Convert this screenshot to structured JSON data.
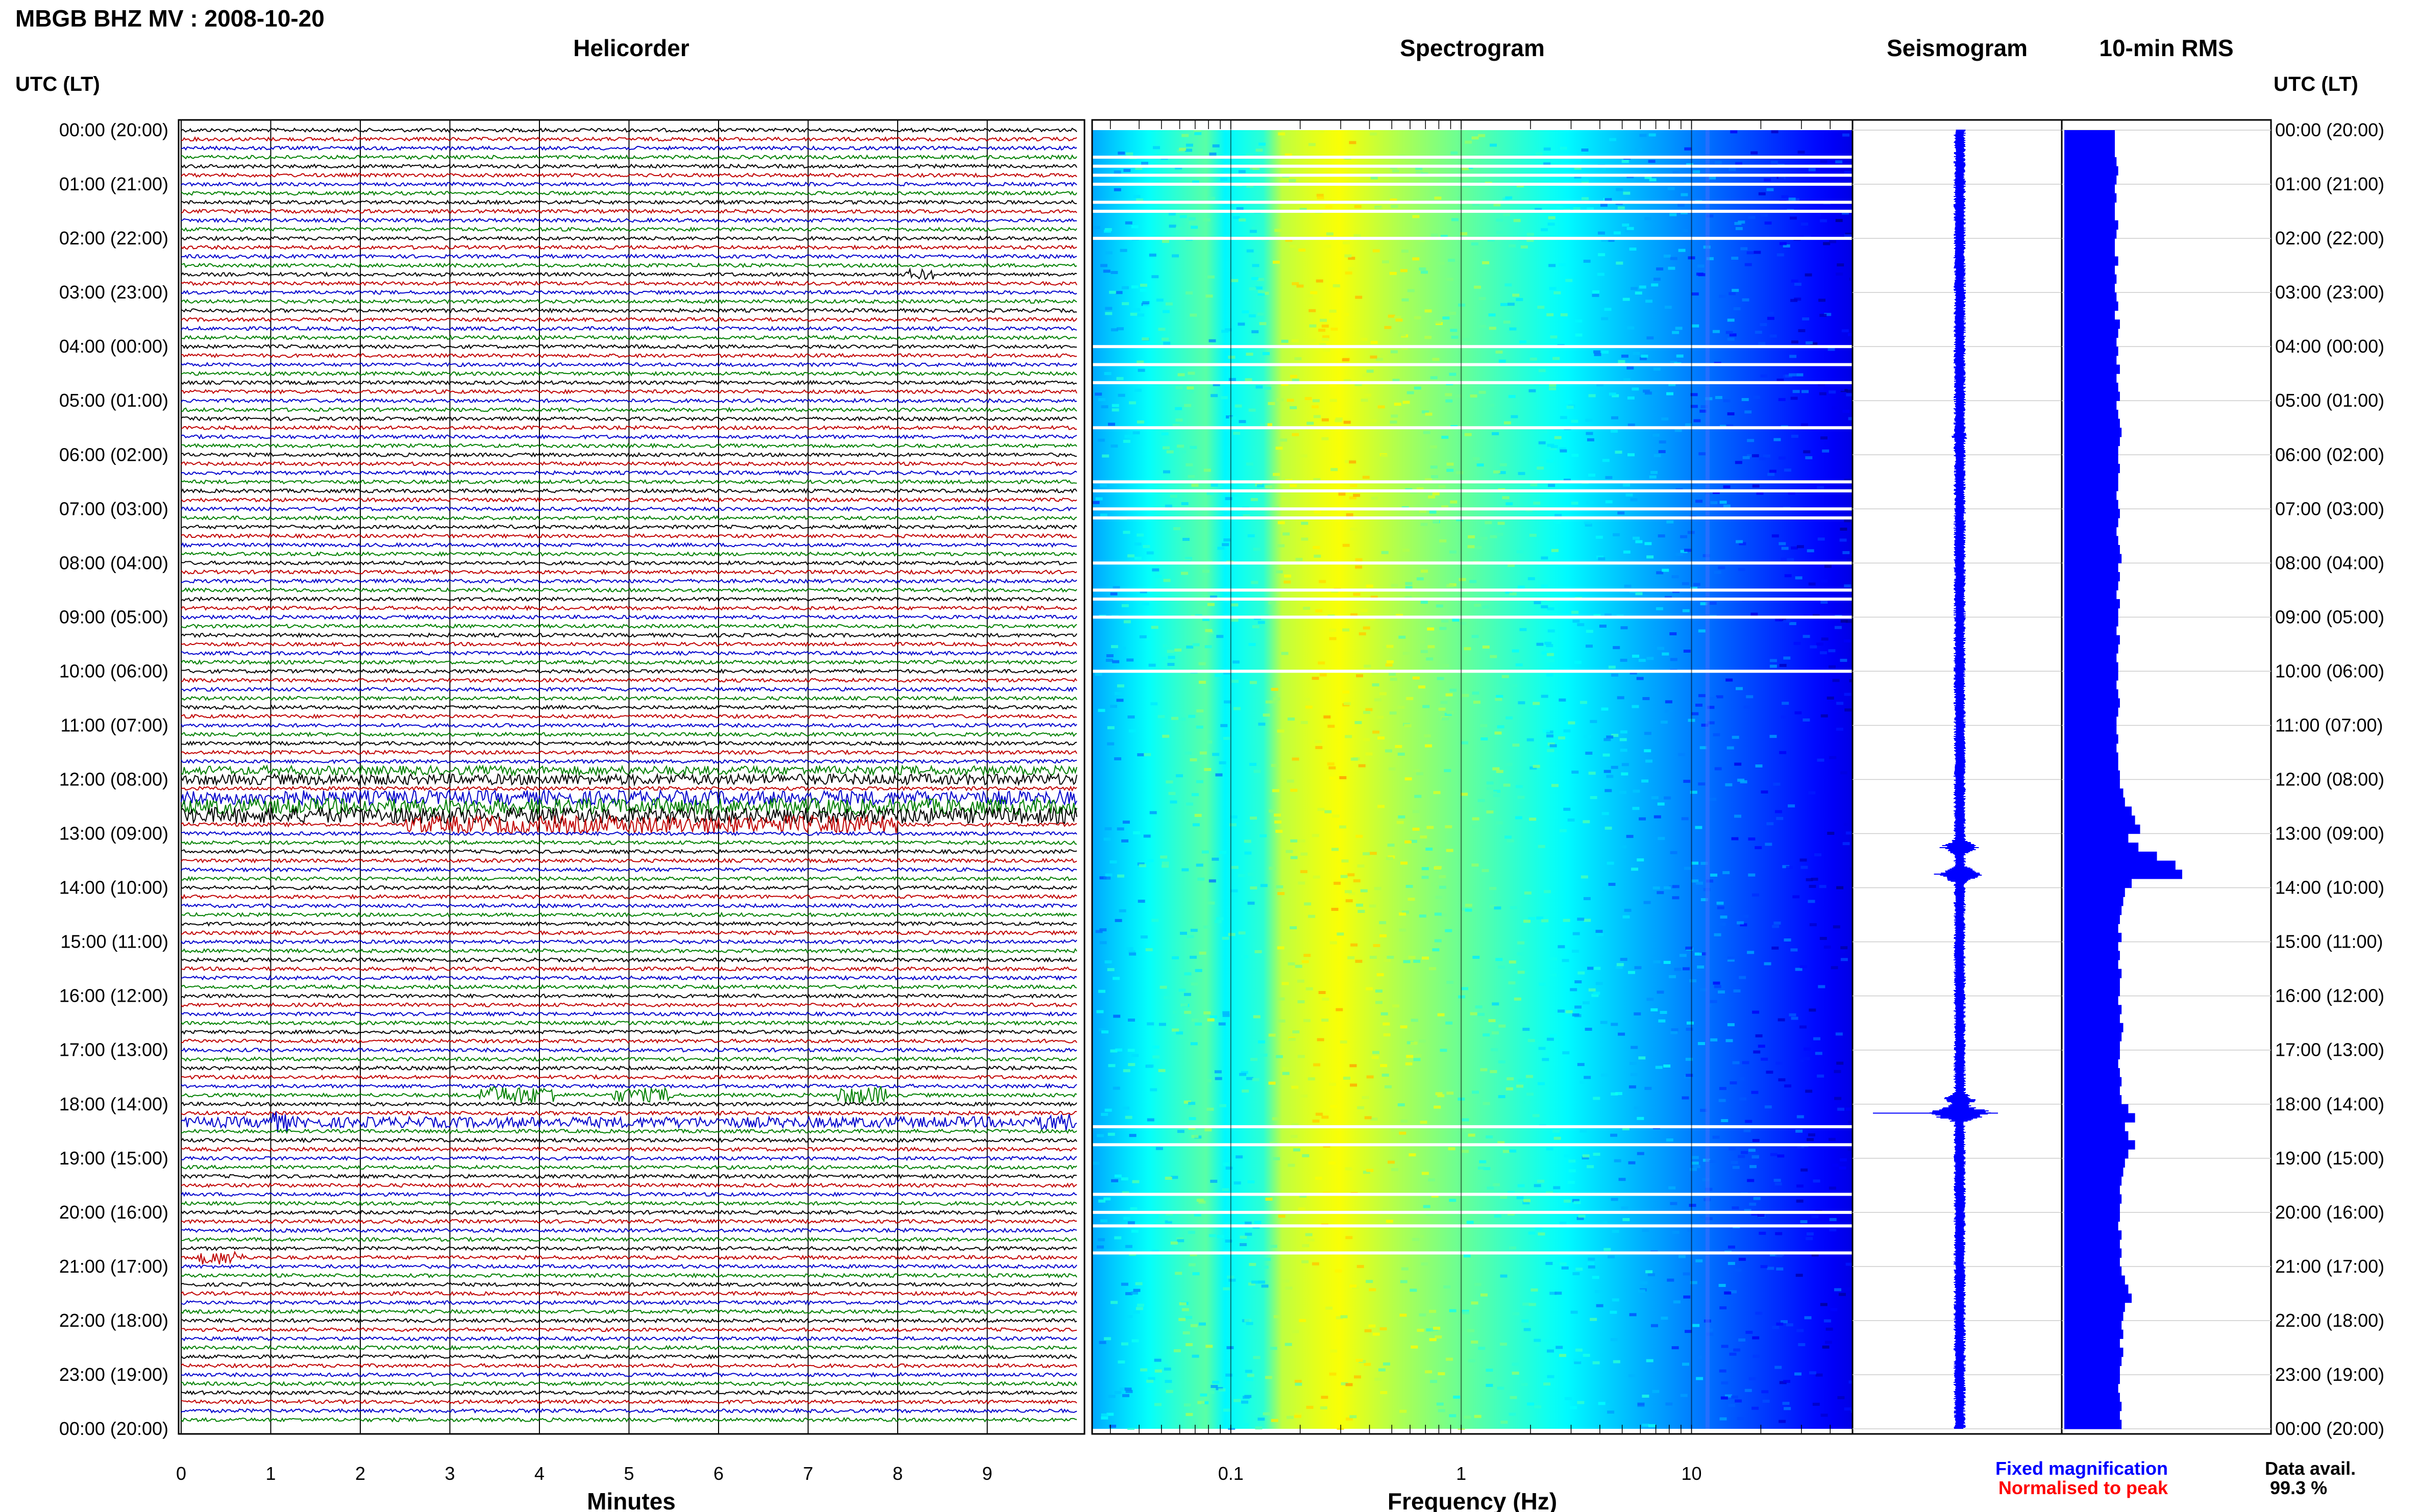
{
  "header": {
    "title": "MBGB BHZ MV : 2008-10-20",
    "utc_label": "UTC (LT)"
  },
  "panels": {
    "helicorder": "Helicorder",
    "spectrogram": "Spectrogram",
    "seismogram": "Seismogram",
    "rms": "10-min RMS"
  },
  "time_labels": [
    "00:00 (20:00)",
    "01:00 (21:00)",
    "02:00 (22:00)",
    "03:00 (23:00)",
    "04:00 (00:00)",
    "05:00 (01:00)",
    "06:00 (02:00)",
    "07:00 (03:00)",
    "08:00 (04:00)",
    "09:00 (05:00)",
    "10:00 (06:00)",
    "11:00 (07:00)",
    "12:00 (08:00)",
    "13:00 (09:00)",
    "14:00 (10:00)",
    "15:00 (11:00)",
    "16:00 (12:00)",
    "17:00 (13:00)",
    "18:00 (14:00)",
    "19:00 (15:00)",
    "20:00 (16:00)",
    "21:00 (17:00)",
    "22:00 (18:00)",
    "23:00 (19:00)",
    "00:00 (20:00)"
  ],
  "chart_data": [
    {
      "type": "line",
      "panel": "Helicorder",
      "xlabel": "Minutes",
      "x_ticks": [
        "0",
        "1",
        "2",
        "3",
        "4",
        "5",
        "6",
        "7",
        "8",
        "9"
      ],
      "xlim": [
        0,
        10
      ],
      "trace_colors": [
        "#000000",
        "#c00000",
        "#0000cc",
        "#008000"
      ],
      "rows_per_hour": 6,
      "hours": 24,
      "events": [
        {
          "row": 16,
          "start_min": 8.1,
          "end_min": 8.4,
          "amp": 3
        },
        {
          "row": 71,
          "start_min": 0,
          "end_min": 10,
          "amp": 2.5
        },
        {
          "row": 72,
          "start_min": 0,
          "end_min": 10,
          "amp": 3
        },
        {
          "row": 74,
          "start_min": 0,
          "end_min": 10,
          "amp": 4
        },
        {
          "row": 75,
          "start_min": 0,
          "end_min": 10,
          "amp": 4.5
        },
        {
          "row": 76,
          "start_min": 0,
          "end_min": 10,
          "amp": 4.5
        },
        {
          "row": 77,
          "start_min": 2.5,
          "end_min": 8,
          "amp": 5
        },
        {
          "row": 107,
          "start_min": 3.3,
          "end_min": 4.2,
          "amp": 5
        },
        {
          "row": 107,
          "start_min": 4.8,
          "end_min": 5.5,
          "amp": 4
        },
        {
          "row": 107,
          "start_min": 7.3,
          "end_min": 7.9,
          "amp": 5
        },
        {
          "row": 110,
          "start_min": 0,
          "end_min": 10,
          "amp": 3
        },
        {
          "row": 110,
          "start_min": 0.9,
          "end_min": 1.2,
          "amp": 6
        },
        {
          "row": 110,
          "start_min": 9.6,
          "end_min": 10,
          "amp": 5
        },
        {
          "row": 125,
          "start_min": 0.2,
          "end_min": 0.7,
          "amp": 4
        }
      ]
    },
    {
      "type": "heatmap",
      "panel": "Spectrogram",
      "xlabel": "Frequency (Hz)",
      "x_scale": "log",
      "xlim": [
        0.025,
        50
      ],
      "x_ticks": [
        0.1,
        1,
        10
      ],
      "x_tick_labels": [
        "0.1",
        "1",
        "10"
      ],
      "peak_frequency_hz": 0.3,
      "gap_rows_minutes": [
        30,
        40,
        50,
        60,
        80,
        90,
        120,
        240,
        260,
        280,
        330,
        390,
        400,
        420,
        430,
        480,
        510,
        520,
        540,
        600,
        1105,
        1125,
        1180,
        1200,
        1215,
        1245
      ]
    },
    {
      "type": "line",
      "panel": "Seismogram",
      "series": [
        {
          "name": "Fixed magnification",
          "color": "#0000ff"
        }
      ],
      "bursts": [
        {
          "minute": 795,
          "amp": 3.5
        },
        {
          "minute": 825,
          "amp": 4.5
        },
        {
          "minute": 1075,
          "amp": 3
        },
        {
          "minute": 1090,
          "amp": 6
        },
        {
          "minute": 340,
          "amp": 1.5
        }
      ]
    },
    {
      "type": "bar",
      "panel": "10-min RMS",
      "orientation": "horizontal",
      "color": "#0000ff",
      "bin_minutes": 10,
      "values": [
        30,
        30,
        30,
        31,
        32,
        31,
        30,
        31,
        30,
        30,
        32,
        31,
        30,
        30,
        32,
        30,
        31,
        30,
        31,
        32,
        30,
        33,
        32,
        31,
        32,
        31,
        33,
        31,
        32,
        33,
        31,
        32,
        33,
        34,
        33,
        32,
        32,
        33,
        32,
        32,
        31,
        32,
        33,
        32,
        31,
        32,
        33,
        34,
        32,
        33,
        32,
        31,
        33,
        32,
        32,
        31,
        33,
        32,
        31,
        32,
        32,
        31,
        32,
        33,
        32,
        31,
        31,
        32,
        31,
        32,
        32,
        33,
        33,
        35,
        36,
        40,
        42,
        45,
        38,
        44,
        55,
        66,
        70,
        40,
        36,
        35,
        34,
        33,
        32,
        34,
        32,
        33,
        32,
        34,
        33,
        33,
        32,
        34,
        33,
        35,
        34,
        33,
        33,
        32,
        33,
        34,
        33,
        34,
        38,
        42,
        36,
        38,
        42,
        38,
        36,
        35,
        34,
        33,
        34,
        33,
        33,
        32,
        34,
        33,
        34,
        33,
        34,
        36,
        38,
        40,
        36,
        35,
        34,
        35,
        33,
        35,
        34,
        33,
        33,
        32,
        33,
        34,
        33,
        34
      ]
    }
  ],
  "legend": {
    "fixed": "Fixed magnification",
    "normalised": "Normalised to peak",
    "fixed_color": "#0000ff",
    "normalised_color": "#ff0000",
    "data_avail_label": "Data avail.",
    "data_avail_value": "99.3 %"
  }
}
